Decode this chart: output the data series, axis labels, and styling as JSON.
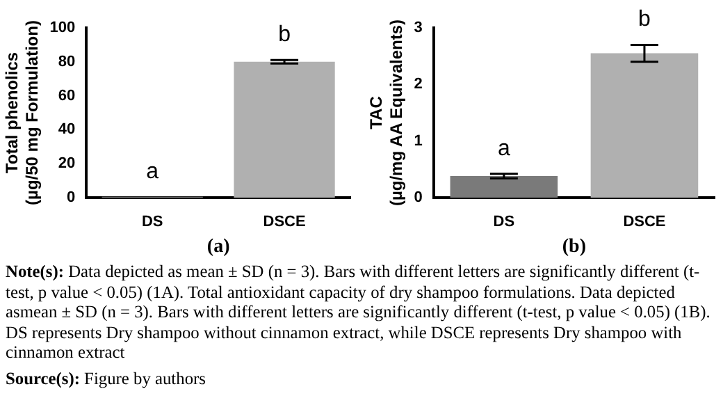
{
  "chart_data": [
    {
      "type": "bar",
      "xlabel": "(a)",
      "ylabel": "Total phenolics\n(µg/50 mg Formulation)",
      "categories": [
        "DS",
        "DSCE"
      ],
      "series": [
        {
          "colors": [
            "#7a7a7a",
            "#b0b0b0"
          ],
          "values": [
            0.5,
            80
          ],
          "errors": [
            null,
            1
          ]
        }
      ],
      "ylim": [
        0,
        100
      ],
      "yticks": [
        0,
        20,
        40,
        60,
        80,
        100
      ],
      "grid": false,
      "legend": false,
      "annotations": [
        {
          "text": "a",
          "x": "DS",
          "y": 0.5
        },
        {
          "text": "b",
          "x": "DSCE",
          "y": 80
        }
      ]
    },
    {
      "type": "bar",
      "xlabel": "(b)",
      "ylabel": "TAC\n(µg/mg AA Equivalents)",
      "categories": [
        "DS",
        "DSCE"
      ],
      "series": [
        {
          "colors": [
            "#7a7a7a",
            "#b0b0b0"
          ],
          "values": [
            0.38,
            2.55
          ],
          "errors": [
            0.04,
            0.15
          ]
        }
      ],
      "ylim": [
        0,
        3
      ],
      "yticks": [
        0,
        1,
        2,
        3
      ],
      "grid": false,
      "legend": false,
      "annotations": [
        {
          "text": "a",
          "x": "DS",
          "y": 0.38
        },
        {
          "text": "b",
          "x": "DSCE",
          "y": 2.55
        }
      ]
    },
    {
      "type": "other",
      "annotations": [
        "Note(s): Data depicted as mean ± SD (n = 3). Bars with different letters are significantly different (t-test, p value < 0.05) (1A). Total antioxidant capacity of dry shampoo formulations. Data depicted asmean ± SD (n = 3). Bars with different letters are significantly different (t-test, p value < 0.05) (1B). DS represents Dry shampoo without cinnamon extract, while DSCE represents Dry shampoo with cinnamon extract",
        "Source(s): Figure by authors"
      ]
    }
  ]
}
